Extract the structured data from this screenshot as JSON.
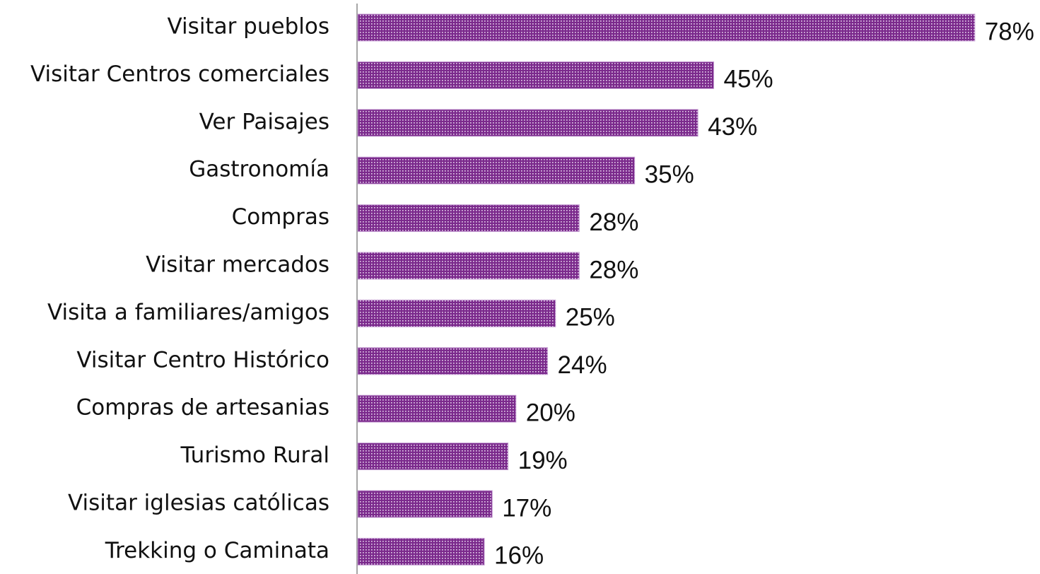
{
  "chart_data": {
    "type": "bar",
    "orientation": "horizontal",
    "categories": [
      "Visitar pueblos",
      "Visitar Centros comerciales",
      "Ver Paisajes",
      "Gastronomía",
      "Compras",
      "Visitar mercados",
      "Visita a familiares/amigos",
      "Visitar Centro Histórico",
      "Compras de artesanias",
      "Turismo Rural",
      "Visitar iglesias católicas",
      "Trekking o Caminata"
    ],
    "values": [
      78,
      45,
      43,
      35,
      28,
      28,
      25,
      24,
      20,
      19,
      17,
      16
    ],
    "value_labels": [
      "78%",
      "45%",
      "43%",
      "35%",
      "28%",
      "28%",
      "25%",
      "24%",
      "20%",
      "19%",
      "17%",
      "16%"
    ],
    "color": "#7b2a8c"
  }
}
